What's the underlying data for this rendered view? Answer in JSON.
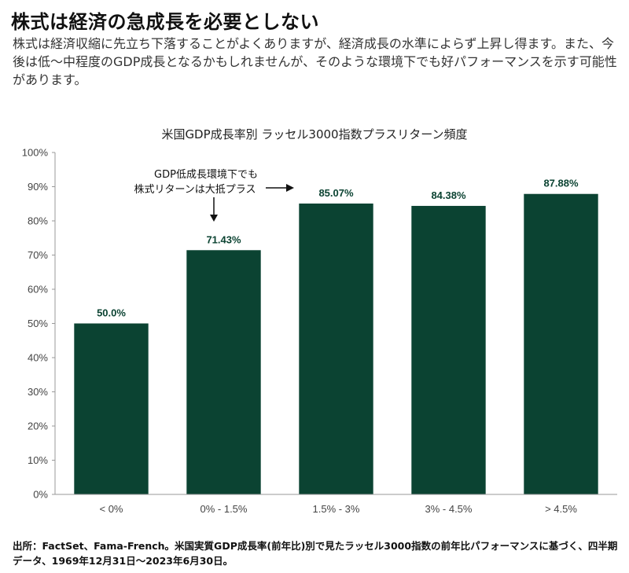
{
  "header": {
    "title": "株式は経済の急成長を必要としない",
    "subtitle": "株式は経済収縮に先立ち下落することがよくありますが、経済成長の水準によらず上昇し得ます。また、今後は低～中程度のGDP成長となるかもしれませんが、そのような環境下でも好パフォーマンスを示す可能性があります。"
  },
  "chart_data": {
    "type": "bar",
    "title": "米国GDP成長率別 ラッセル3000指数プラスリターン頻度",
    "categories": [
      "< 0%",
      "0% - 1.5%",
      "1.5% - 3%",
      "3% - 4.5%",
      "> 4.5%"
    ],
    "values": [
      50.0,
      71.43,
      85.07,
      84.38,
      87.88
    ],
    "value_labels": [
      "50.0%",
      "71.43%",
      "85.07%",
      "84.38%",
      "87.88%"
    ],
    "y_ticks": [
      "0%",
      "10%",
      "20%",
      "30%",
      "40%",
      "50%",
      "60%",
      "70%",
      "80%",
      "90%",
      "100%"
    ],
    "ylim": [
      0,
      100
    ],
    "grid": false,
    "bar_color": "#0b4332",
    "annotation": {
      "lines": [
        "GDP低成長環境下でも",
        "株式リターンは大抵プラス"
      ]
    }
  },
  "footer": {
    "source": "出所：FactSet、Fama-French。米国実質GDP成長率(前年比)別で見たラッセル3000指数の前年比パフォーマンスに基づく、四半期データ、1969年12月31日～2023年6月30日。"
  }
}
